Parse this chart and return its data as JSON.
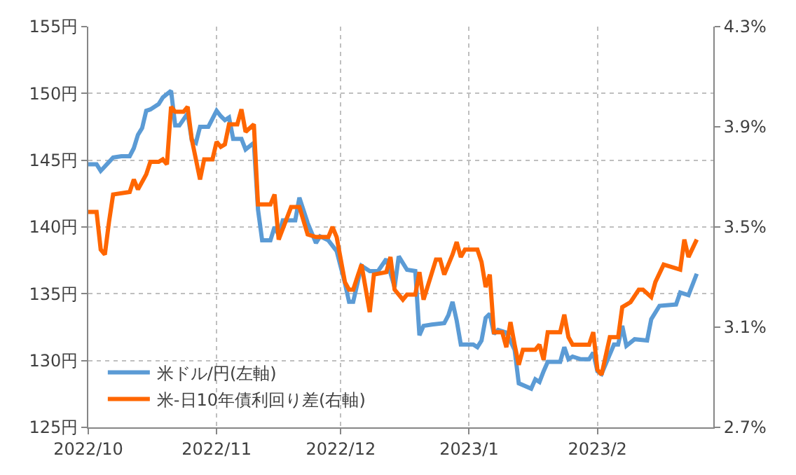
{
  "chart_data": {
    "type": "line",
    "xlim": [
      "2022-10-01",
      "2023-03-01"
    ],
    "xticks": [
      {
        "value": "2022-10-01",
        "label": "2022/10"
      },
      {
        "value": "2022-11-01",
        "label": "2022/11"
      },
      {
        "value": "2022-12-01",
        "label": "2022/12"
      },
      {
        "value": "2023-01-01",
        "label": "2023/1"
      },
      {
        "value": "2023-02-01",
        "label": "2023/2"
      }
    ],
    "ylim": [
      125,
      155
    ],
    "yticks": [
      {
        "value": 125,
        "label": "125円"
      },
      {
        "value": 130,
        "label": "130円"
      },
      {
        "value": 135,
        "label": "135円"
      },
      {
        "value": 140,
        "label": "140円"
      },
      {
        "value": 145,
        "label": "145円"
      },
      {
        "value": 150,
        "label": "150円"
      },
      {
        "value": 155,
        "label": "155円"
      }
    ],
    "y2lim": [
      2.7,
      4.3
    ],
    "y2ticks": [
      {
        "value": 2.7,
        "label": "2.7%"
      },
      {
        "value": 3.1,
        "label": "3.1%"
      },
      {
        "value": 3.5,
        "label": "3.5%"
      },
      {
        "value": 3.9,
        "label": "3.9%"
      },
      {
        "value": 4.3,
        "label": "4.3%"
      }
    ],
    "grid": true,
    "legend": "bottom left",
    "marker": "none",
    "line_style": "solid",
    "series": [
      {
        "name": "米ドル/円(左軸)",
        "color": "#5b9bd5",
        "x": [
          "2022-10-01",
          "2022-10-03",
          "2022-10-04",
          "2022-10-07",
          "2022-10-09",
          "2022-10-11",
          "2022-10-12",
          "2022-10-13",
          "2022-10-14",
          "2022-10-15",
          "2022-10-16",
          "2022-10-18",
          "2022-10-19",
          "2022-10-21",
          "2022-10-22",
          "2022-10-23",
          "2022-10-25",
          "2022-10-26",
          "2022-10-27",
          "2022-10-28",
          "2022-10-30",
          "2022-11-01",
          "2022-11-02",
          "2022-11-03",
          "2022-11-04",
          "2022-11-05",
          "2022-11-07",
          "2022-11-08",
          "2022-11-10",
          "2022-11-11",
          "2022-11-12",
          "2022-11-14",
          "2022-11-15",
          "2022-11-16",
          "2022-11-17",
          "2022-11-20",
          "2022-11-21",
          "2022-11-23",
          "2022-11-25",
          "2022-11-26",
          "2022-11-28",
          "2022-11-30",
          "2022-12-02",
          "2022-12-03",
          "2022-12-04",
          "2022-12-06",
          "2022-12-08",
          "2022-12-10",
          "2022-12-12",
          "2022-12-14",
          "2022-12-15",
          "2022-12-17",
          "2022-12-19",
          "2022-12-20",
          "2022-12-21",
          "2022-12-23",
          "2022-12-26",
          "2022-12-27",
          "2022-12-28",
          "2022-12-29",
          "2022-12-30",
          "2023-01-02",
          "2023-01-03",
          "2023-01-04",
          "2023-01-05",
          "2023-01-06",
          "2023-01-07",
          "2023-01-08",
          "2023-01-10",
          "2023-01-12",
          "2023-01-13",
          "2023-01-16",
          "2023-01-17",
          "2023-01-18",
          "2023-01-19",
          "2023-01-20",
          "2023-01-23",
          "2023-01-24",
          "2023-01-25",
          "2023-01-26",
          "2023-01-28",
          "2023-01-30",
          "2023-01-31",
          "2023-02-01",
          "2023-02-02",
          "2023-02-05",
          "2023-02-06",
          "2023-02-07",
          "2023-02-08",
          "2023-02-10",
          "2023-02-13",
          "2023-02-14",
          "2023-02-16",
          "2023-02-20",
          "2023-02-21",
          "2023-02-23",
          "2023-02-25"
        ],
        "values": [
          144.7,
          144.7,
          144.2,
          145.2,
          145.3,
          145.3,
          145.9,
          146.9,
          147.4,
          148.7,
          148.8,
          149.2,
          149.7,
          150.2,
          147.6,
          147.6,
          148.5,
          146.5,
          146.3,
          147.5,
          147.5,
          148.7,
          148.3,
          148.0,
          148.2,
          146.6,
          146.6,
          145.8,
          146.3,
          141.3,
          139.0,
          139.0,
          140.0,
          139.4,
          140.5,
          140.5,
          142.2,
          140.3,
          138.8,
          139.3,
          139.0,
          138.2,
          135.8,
          134.4,
          134.4,
          137.1,
          136.7,
          136.7,
          137.6,
          135.5,
          137.8,
          136.8,
          136.7,
          131.9,
          132.6,
          132.7,
          132.8,
          133.4,
          134.4,
          133.0,
          131.2,
          131.2,
          131.0,
          131.5,
          133.2,
          133.5,
          132.0,
          132.3,
          132.1,
          130.8,
          128.3,
          127.9,
          128.6,
          128.4,
          129.2,
          129.9,
          129.9,
          131.0,
          130.1,
          130.3,
          130.1,
          130.1,
          130.6,
          129.2,
          129.0,
          131.2,
          131.2,
          132.6,
          131.1,
          131.6,
          131.5,
          133.1,
          134.1,
          134.2,
          135.1,
          134.9,
          136.5
        ]
      },
      {
        "name": "米-日10年債利回り差(右軸)",
        "color": "#ff6600",
        "axis": "y2",
        "x": [
          "2022-10-01",
          "2022-10-03",
          "2022-10-04",
          "2022-10-05",
          "2022-10-06",
          "2022-10-07",
          "2022-10-11",
          "2022-10-12",
          "2022-10-13",
          "2022-10-15",
          "2022-10-16",
          "2022-10-18",
          "2022-10-19",
          "2022-10-20",
          "2022-10-21",
          "2022-10-22",
          "2022-10-24",
          "2022-10-25",
          "2022-10-26",
          "2022-10-28",
          "2022-10-29",
          "2022-10-31",
          "2022-11-01",
          "2022-11-02",
          "2022-11-03",
          "2022-11-04",
          "2022-11-06",
          "2022-11-07",
          "2022-11-08",
          "2022-11-10",
          "2022-11-11",
          "2022-11-14",
          "2022-11-15",
          "2022-11-16",
          "2022-11-19",
          "2022-11-21",
          "2022-11-23",
          "2022-11-25",
          "2022-11-28",
          "2022-11-29",
          "2022-11-30",
          "2022-12-02",
          "2022-12-03",
          "2022-12-04",
          "2022-12-06",
          "2022-12-08",
          "2022-12-09",
          "2022-12-12",
          "2022-12-13",
          "2022-12-14",
          "2022-12-16",
          "2022-12-17",
          "2022-12-19",
          "2022-12-20",
          "2022-12-21",
          "2022-12-24",
          "2022-12-25",
          "2022-12-26",
          "2022-12-28",
          "2022-12-29",
          "2022-12-30",
          "2022-12-31",
          "2023-01-03",
          "2023-01-04",
          "2023-01-05",
          "2023-01-06",
          "2023-01-07",
          "2023-01-09",
          "2023-01-10",
          "2023-01-11",
          "2023-01-12",
          "2023-01-13",
          "2023-01-14",
          "2023-01-17",
          "2023-01-18",
          "2023-01-19",
          "2023-01-20",
          "2023-01-23",
          "2023-01-24",
          "2023-01-25",
          "2023-01-26",
          "2023-01-30",
          "2023-01-31",
          "2023-02-01",
          "2023-02-02",
          "2023-02-04",
          "2023-02-06",
          "2023-02-07",
          "2023-02-08",
          "2023-02-09",
          "2023-02-11",
          "2023-02-12",
          "2023-02-14",
          "2023-02-15",
          "2023-02-17",
          "2023-02-21",
          "2023-02-22",
          "2023-02-23",
          "2023-02-25"
        ],
        "values": [
          3.56,
          3.56,
          3.41,
          3.39,
          3.52,
          3.63,
          3.64,
          3.69,
          3.65,
          3.71,
          3.76,
          3.76,
          3.77,
          3.75,
          3.98,
          3.96,
          3.96,
          3.98,
          3.85,
          3.69,
          3.77,
          3.77,
          3.84,
          3.82,
          3.83,
          3.91,
          3.91,
          3.97,
          3.88,
          3.91,
          3.59,
          3.59,
          3.63,
          3.45,
          3.58,
          3.58,
          3.47,
          3.46,
          3.46,
          3.5,
          3.46,
          3.28,
          3.25,
          3.25,
          3.35,
          3.16,
          3.31,
          3.32,
          3.38,
          3.25,
          3.21,
          3.23,
          3.23,
          3.32,
          3.21,
          3.37,
          3.37,
          3.31,
          3.39,
          3.44,
          3.38,
          3.41,
          3.41,
          3.36,
          3.26,
          3.31,
          3.08,
          3.08,
          3.02,
          3.12,
          3.03,
          2.95,
          3.01,
          3.01,
          3.03,
          2.97,
          3.08,
          3.08,
          3.15,
          3.06,
          3.03,
          3.03,
          3.08,
          2.93,
          2.91,
          3.06,
          3.06,
          3.18,
          3.19,
          3.2,
          3.25,
          3.25,
          3.22,
          3.28,
          3.35,
          3.33,
          3.45,
          3.38,
          3.45
        ]
      }
    ]
  }
}
